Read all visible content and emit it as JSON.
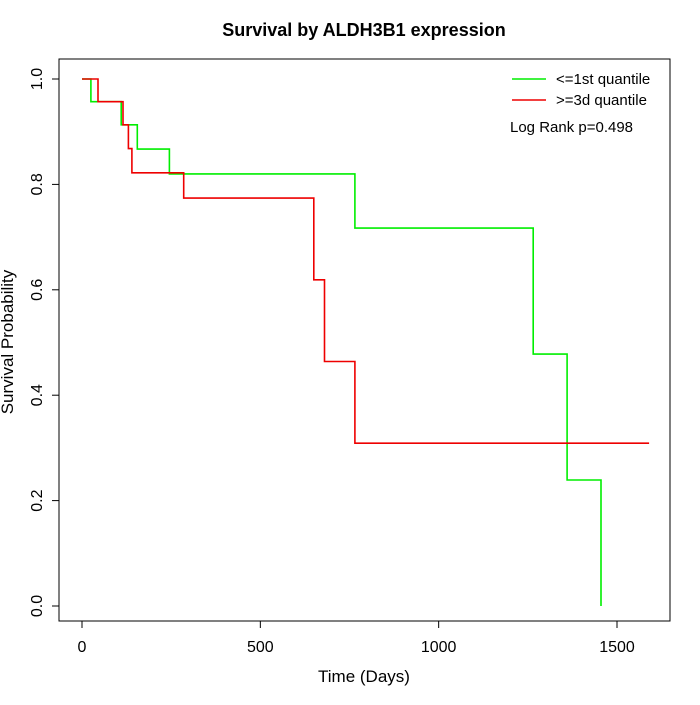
{
  "chart_data": {
    "type": "line",
    "step": true,
    "title": "Survival by ALDH3B1 expression",
    "xlabel": "Time (Days)",
    "ylabel": "Survival Probability",
    "xlim": [
      0,
      1600
    ],
    "ylim": [
      0,
      1.0
    ],
    "x_ticks": [
      0,
      500,
      1000,
      1500
    ],
    "x_tick_labels": [
      "0",
      "500",
      "1000",
      "1500"
    ],
    "y_ticks": [
      0.0,
      0.2,
      0.4,
      0.6,
      0.8,
      1.0
    ],
    "y_tick_labels": [
      "0.0",
      "0.2",
      "0.4",
      "0.6",
      "0.8",
      "1.0"
    ],
    "grid": false,
    "legend_position": "top-right",
    "annotation": "Log Rank p=0.498",
    "series": [
      {
        "name": "<=1st quantile",
        "color": "#00ee00",
        "points": [
          [
            0,
            1.0
          ],
          [
            25,
            1.0
          ],
          [
            25,
            0.957
          ],
          [
            110,
            0.957
          ],
          [
            110,
            0.913
          ],
          [
            155,
            0.913
          ],
          [
            155,
            0.867
          ],
          [
            245,
            0.867
          ],
          [
            245,
            0.82
          ],
          [
            765,
            0.82
          ],
          [
            765,
            0.717
          ],
          [
            1265,
            0.717
          ],
          [
            1265,
            0.478
          ],
          [
            1360,
            0.478
          ],
          [
            1360,
            0.239
          ],
          [
            1455,
            0.239
          ],
          [
            1455,
            0.0
          ]
        ]
      },
      {
        "name": ">=3d quantile",
        "color": "#ee0000",
        "points": [
          [
            0,
            1.0
          ],
          [
            45,
            1.0
          ],
          [
            45,
            0.957
          ],
          [
            115,
            0.957
          ],
          [
            115,
            0.913
          ],
          [
            130,
            0.913
          ],
          [
            130,
            0.868
          ],
          [
            140,
            0.868
          ],
          [
            140,
            0.822
          ],
          [
            285,
            0.822
          ],
          [
            285,
            0.774
          ],
          [
            650,
            0.774
          ],
          [
            650,
            0.619
          ],
          [
            680,
            0.619
          ],
          [
            680,
            0.464
          ],
          [
            765,
            0.464
          ],
          [
            765,
            0.309
          ],
          [
            1590,
            0.309
          ]
        ]
      }
    ]
  }
}
